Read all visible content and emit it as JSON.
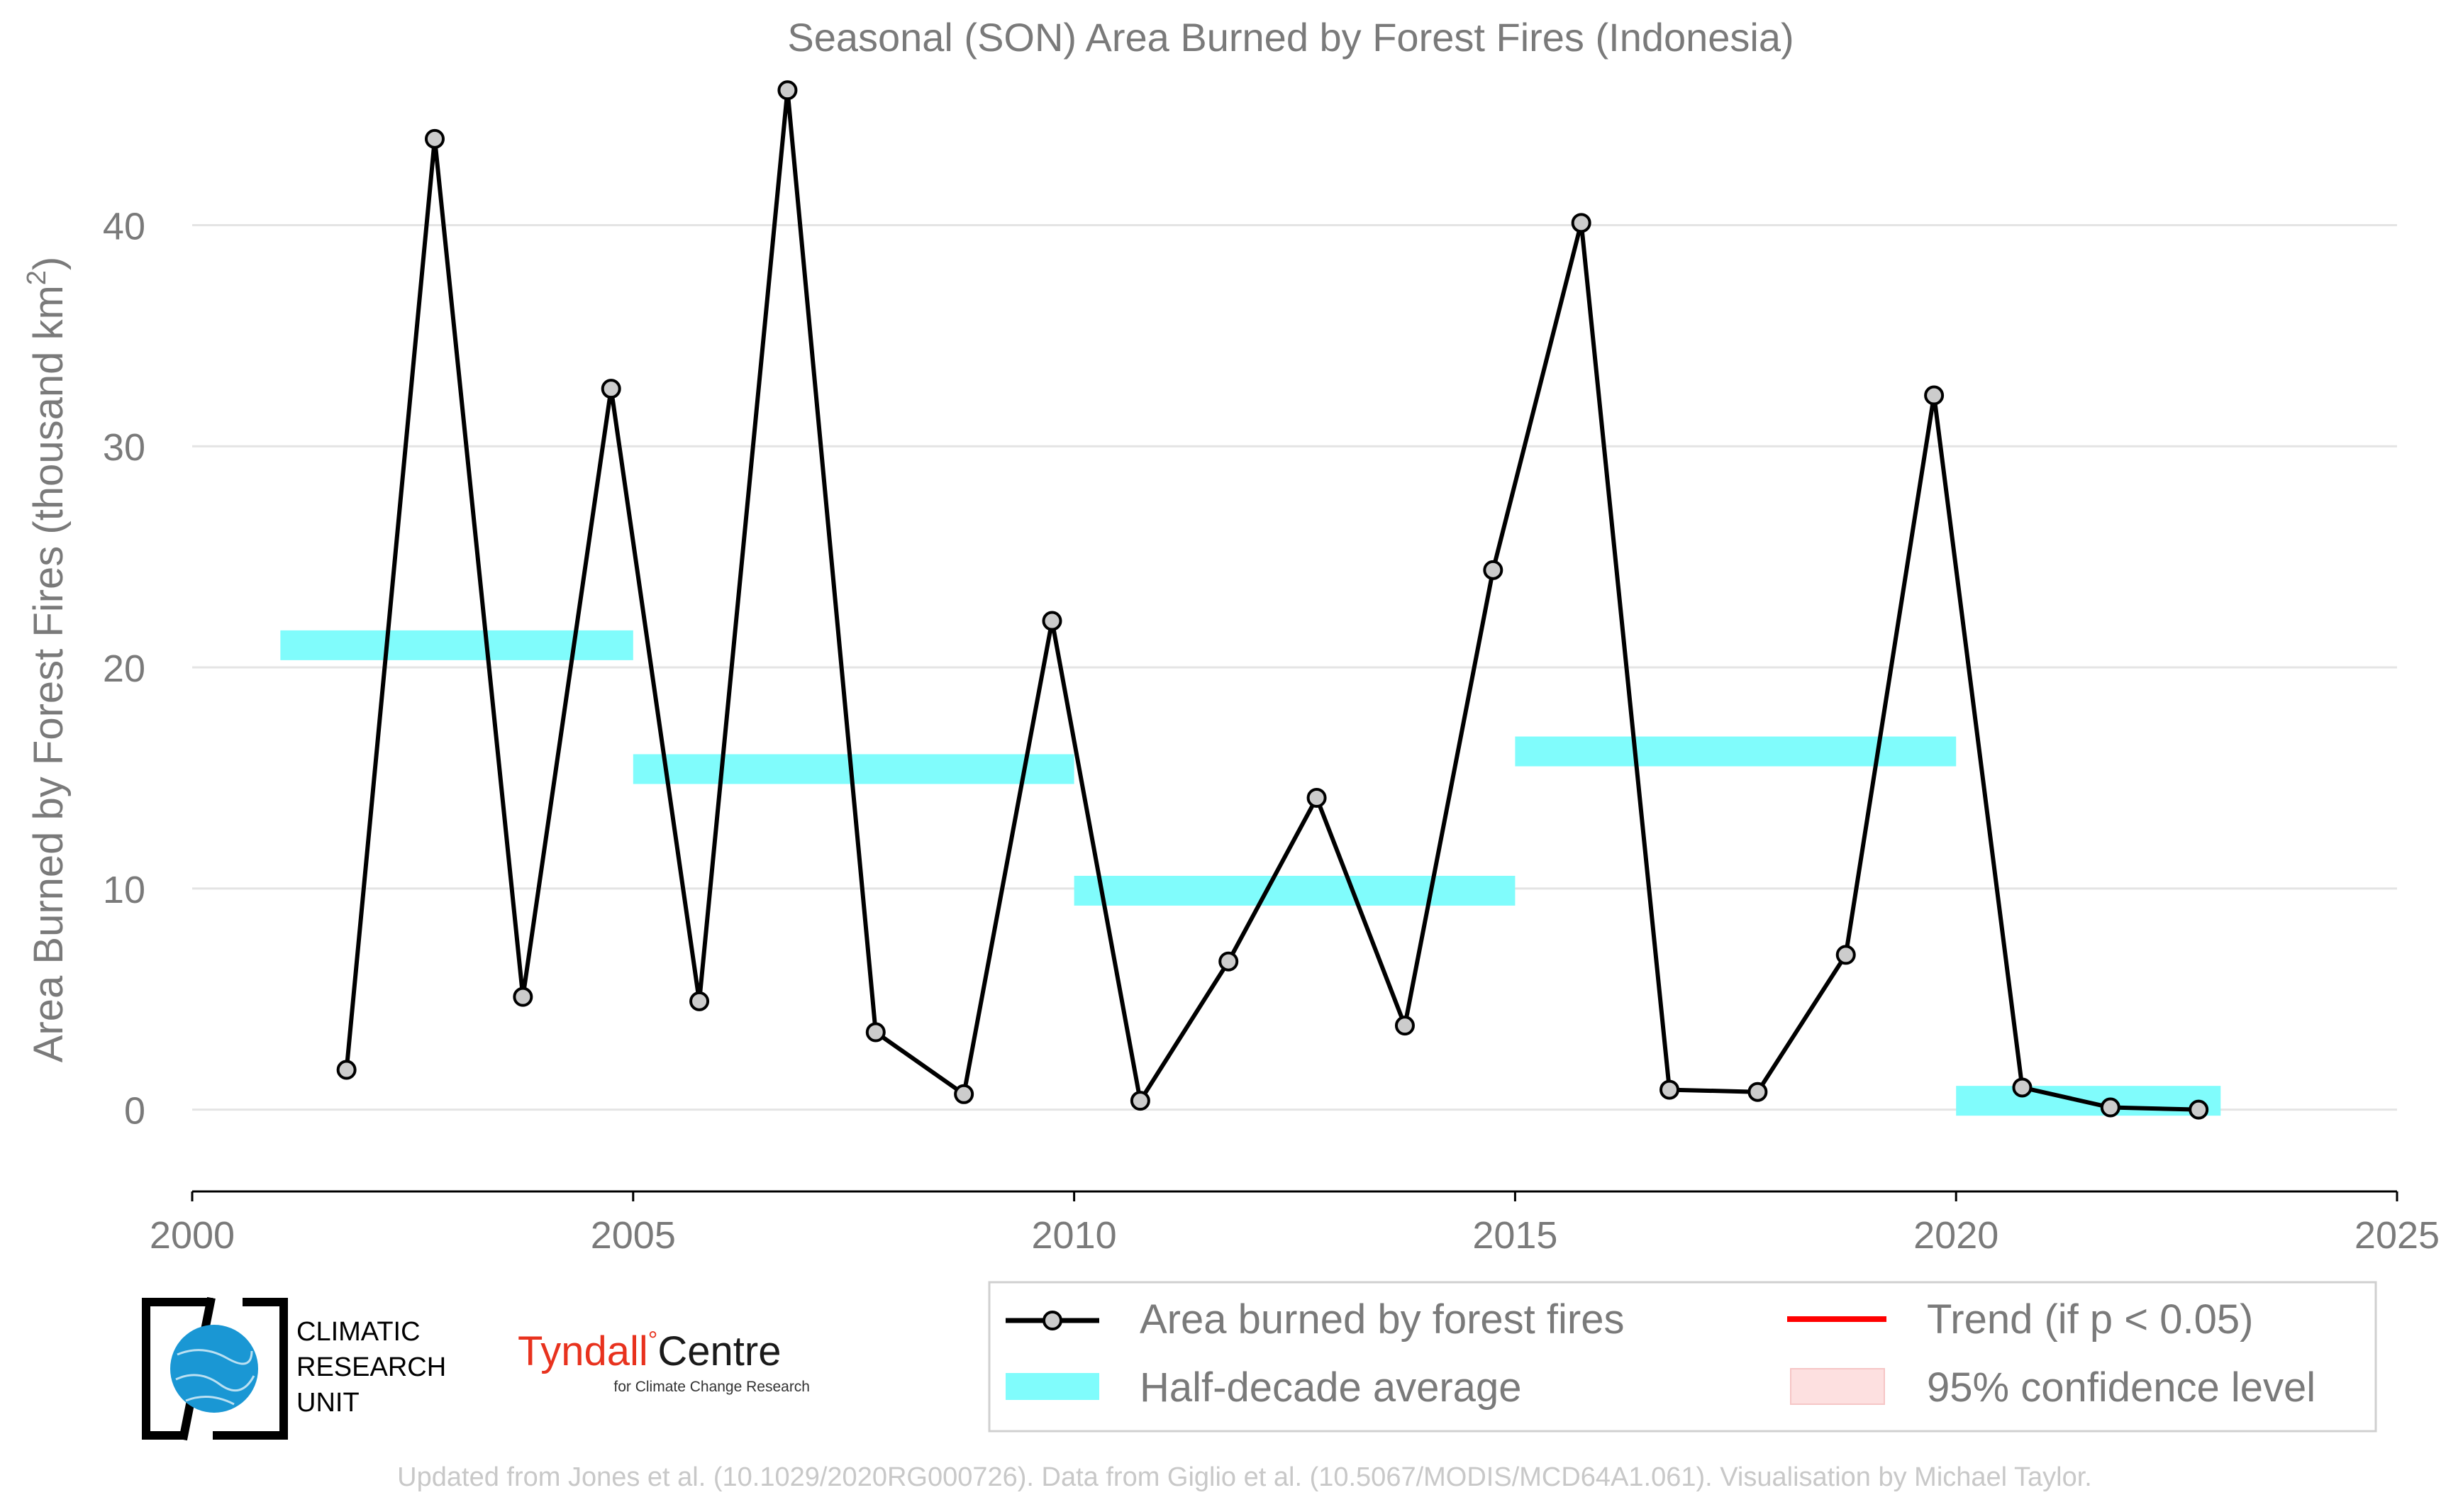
{
  "chart_data": {
    "type": "line",
    "title": "Seasonal (SON) Area Burned by Forest Fires (Indonesia)",
    "ylabel": "Area Burned by Forest Fires (thousand km",
    "ylabel_sup": "2",
    "ylabel_end": ")",
    "xlabel": "",
    "xlim": [
      2000,
      2025
    ],
    "ylim": [
      -3.7,
      48
    ],
    "x_ticks": [
      "2000",
      "2005",
      "2010",
      "2015",
      "2020",
      "2025"
    ],
    "x_tick_values": [
      2000,
      2005,
      2010,
      2015,
      2020,
      2025
    ],
    "y_ticks": [
      "0",
      "10",
      "20",
      "30",
      "40"
    ],
    "y_tick_values": [
      0,
      10,
      20,
      30,
      40
    ],
    "grid": "horizontal",
    "series": [
      {
        "name": "Area burned by forest fires",
        "color": "#000000",
        "marker_color": "#cccccc",
        "x": [
          2001.75,
          2002.75,
          2003.75,
          2004.75,
          2005.75,
          2006.75,
          2007.75,
          2008.75,
          2009.75,
          2010.75,
          2011.75,
          2012.75,
          2013.75,
          2014.75,
          2015.75,
          2016.75,
          2017.75,
          2018.75,
          2019.75,
          2020.75,
          2021.75,
          2022.75
        ],
        "values": [
          1.8,
          43.9,
          5.1,
          32.6,
          4.9,
          46.1,
          3.5,
          0.7,
          22.1,
          0.4,
          6.7,
          14.1,
          3.8,
          24.4,
          40.1,
          0.9,
          0.8,
          7.0,
          32.3,
          1.0,
          0.1,
          0.0
        ]
      }
    ],
    "half_decade_average": {
      "name": "Half-decade average",
      "color": "#80fcfc",
      "segments": [
        {
          "start": 2001,
          "end": 2005,
          "value": 21.0
        },
        {
          "start": 2005,
          "end": 2010,
          "value": 15.4
        },
        {
          "start": 2010,
          "end": 2015,
          "value": 9.9
        },
        {
          "start": 2015,
          "end": 2020,
          "value": 16.2
        },
        {
          "start": 2020,
          "end": 2023,
          "value": 0.4
        }
      ]
    },
    "legend": {
      "placement": "bottom-right",
      "entries": [
        {
          "label": "Area burned by forest fires",
          "kind": "line-marker",
          "color": "#000000"
        },
        {
          "label": "Trend (if p < 0.05)",
          "kind": "line",
          "color": "#ff0000"
        },
        {
          "label": "Half-decade average",
          "kind": "band",
          "color": "#80fcfc"
        },
        {
          "label": "95% confidence level",
          "kind": "patch",
          "color": "#fde0e0"
        }
      ]
    }
  },
  "logos": {
    "cru": {
      "line1": "CLIMATIC",
      "line2": "RESEARCH",
      "line3": "UNIT",
      "color": "#1a97d4"
    },
    "tyndall": {
      "name_a": "Tyndall",
      "name_b": "Centre",
      "tagline": "for Climate Change Research",
      "color": "#e8321e"
    }
  },
  "footer": {
    "credit": "Updated from Jones et al. (10.1029/2020RG000726). Data from Giglio et al. (10.5067/MODIS/MCD64A1.061). Visualisation by Michael Taylor."
  }
}
